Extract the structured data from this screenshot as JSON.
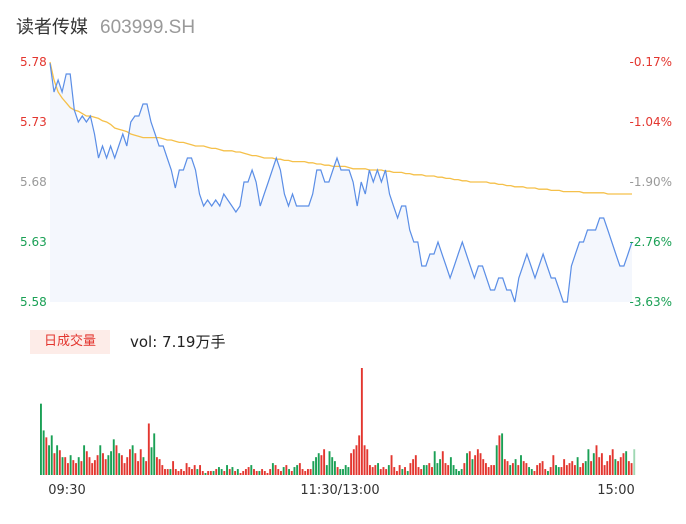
{
  "header": {
    "name": "读者传媒",
    "code": "603999.SH"
  },
  "volume_panel": {
    "tab_label": "日成交量",
    "vol_text": "vol: 7.19万手"
  },
  "colors": {
    "price_line": "#5b8ee6",
    "avg_line": "#f5c04a",
    "area_fill": "#f4f7fd",
    "up": "#e3362f",
    "down": "#1aa055",
    "neutral": "#9a9a9a",
    "badge_bg": "#fdece8"
  },
  "chart_data": [
    {
      "type": "line",
      "title": "",
      "y_ticks_left": [
        "5.78",
        "5.73",
        "5.68",
        "5.63",
        "5.58"
      ],
      "y_ticks_right": [
        "-0.17%",
        "-1.04%",
        "-1.90%",
        "-2.76%",
        "-3.63%"
      ],
      "ylim": [
        5.58,
        5.78
      ],
      "x_ticks": [
        "09:30",
        "11:30/13:00",
        "15:00"
      ],
      "series": [
        {
          "values": [
            5.779,
            5.755,
            5.765,
            5.755,
            5.77,
            5.77,
            5.74,
            5.73,
            5.735,
            5.73,
            5.735,
            5.72,
            5.7,
            5.71,
            5.7,
            5.71,
            5.7,
            5.71,
            5.72,
            5.71,
            5.73,
            5.735,
            5.735,
            5.745,
            5.745,
            5.73,
            5.72,
            5.71,
            5.71,
            5.7,
            5.69,
            5.675,
            5.69,
            5.69,
            5.7,
            5.7,
            5.69,
            5.67,
            5.66,
            5.665,
            5.66,
            5.665,
            5.66,
            5.67,
            5.665,
            5.66,
            5.655,
            5.66,
            5.68,
            5.68,
            5.69,
            5.68,
            5.66,
            5.67,
            5.68,
            5.69,
            5.7,
            5.69,
            5.67,
            5.66,
            5.67,
            5.66,
            5.66,
            5.66,
            5.66,
            5.67,
            5.69,
            5.69,
            5.68,
            5.68,
            5.69,
            5.7,
            5.69,
            5.69,
            5.69,
            5.68,
            5.66,
            5.68,
            5.67,
            5.69,
            5.68,
            5.69,
            5.68,
            5.69,
            5.67,
            5.66,
            5.65,
            5.66,
            5.66,
            5.64,
            5.63,
            5.63,
            5.61,
            5.61,
            5.62,
            5.62,
            5.63,
            5.62,
            5.61,
            5.6,
            5.61,
            5.62,
            5.63,
            5.62,
            5.61,
            5.6,
            5.61,
            5.61,
            5.6,
            5.59,
            5.59,
            5.6,
            5.6,
            5.59,
            5.59,
            5.58,
            5.6,
            5.61,
            5.62,
            5.61,
            5.6,
            5.61,
            5.62,
            5.61,
            5.6,
            5.6,
            5.59,
            5.58,
            5.58,
            5.61,
            5.62,
            5.63,
            5.63,
            5.64,
            5.64,
            5.64,
            5.65,
            5.65,
            5.64,
            5.63,
            5.62,
            5.61,
            5.61,
            5.62,
            5.63
          ]
        },
        {
          "values": [
            5.78,
            5.765,
            5.755,
            5.75,
            5.746,
            5.742,
            5.74,
            5.739,
            5.737,
            5.735,
            5.735,
            5.734,
            5.733,
            5.731,
            5.73,
            5.728,
            5.725,
            5.724,
            5.723,
            5.722,
            5.72,
            5.719,
            5.718,
            5.717,
            5.717,
            5.717,
            5.717,
            5.717,
            5.716,
            5.715,
            5.715,
            5.714,
            5.713,
            5.713,
            5.712,
            5.711,
            5.71,
            5.71,
            5.71,
            5.709,
            5.708,
            5.708,
            5.707,
            5.706,
            5.706,
            5.706,
            5.705,
            5.705,
            5.704,
            5.703,
            5.702,
            5.702,
            5.701,
            5.7,
            5.7,
            5.7,
            5.699,
            5.699,
            5.698,
            5.698,
            5.697,
            5.697,
            5.697,
            5.697,
            5.696,
            5.696,
            5.695,
            5.695,
            5.694,
            5.694,
            5.693,
            5.693,
            5.693,
            5.693,
            5.692,
            5.691,
            5.691,
            5.691,
            5.691,
            5.69,
            5.69,
            5.69,
            5.69,
            5.689,
            5.689,
            5.688,
            5.688,
            5.688,
            5.687,
            5.687,
            5.686,
            5.686,
            5.686,
            5.685,
            5.685,
            5.685,
            5.684,
            5.684,
            5.683,
            5.683,
            5.682,
            5.682,
            5.681,
            5.681,
            5.68,
            5.68,
            5.68,
            5.68,
            5.68,
            5.679,
            5.679,
            5.678,
            5.678,
            5.677,
            5.677,
            5.676,
            5.676,
            5.676,
            5.675,
            5.675,
            5.675,
            5.674,
            5.674,
            5.674,
            5.673,
            5.673,
            5.673,
            5.672,
            5.672,
            5.672,
            5.672,
            5.672,
            5.671,
            5.671,
            5.671,
            5.671,
            5.671,
            5.671,
            5.67,
            5.67,
            5.67,
            5.67,
            5.67,
            5.67,
            5.67
          ]
        }
      ]
    },
    {
      "type": "bar",
      "title": "",
      "values": [
        72,
        45,
        38,
        30,
        40,
        22,
        30,
        25,
        18,
        18,
        12,
        20,
        15,
        12,
        18,
        14,
        30,
        24,
        18,
        12,
        15,
        20,
        30,
        22,
        16,
        20,
        24,
        36,
        30,
        22,
        20,
        12,
        18,
        26,
        30,
        22,
        14,
        26,
        18,
        14,
        52,
        28,
        42,
        18,
        16,
        10,
        6,
        6,
        6,
        14,
        6,
        4,
        6,
        4,
        12,
        8,
        6,
        10,
        6,
        10,
        4,
        2,
        4,
        4,
        4,
        6,
        8,
        6,
        4,
        10,
        6,
        8,
        4,
        6,
        2,
        4,
        6,
        8,
        10,
        6,
        4,
        4,
        6,
        4,
        2,
        6,
        12,
        10,
        6,
        4,
        8,
        10,
        6,
        4,
        8,
        10,
        12,
        6,
        4,
        6,
        6,
        14,
        18,
        22,
        20,
        26,
        10,
        24,
        18,
        14,
        8,
        6,
        6,
        10,
        8,
        22,
        26,
        30,
        40,
        108,
        30,
        26,
        10,
        8,
        10,
        12,
        6,
        8,
        6,
        10,
        20,
        8,
        4,
        10,
        6,
        8,
        4,
        12,
        16,
        20,
        8,
        6,
        10,
        10,
        12,
        8,
        24,
        12,
        16,
        24,
        12,
        10,
        18,
        10,
        6,
        4,
        6,
        12,
        22,
        24,
        16,
        20,
        26,
        22,
        16,
        12,
        8,
        10,
        10,
        30,
        40,
        42,
        16,
        14,
        10,
        12,
        16,
        10,
        20,
        14,
        12,
        8,
        6,
        4,
        10,
        12,
        14,
        6,
        4,
        8,
        20,
        10,
        8,
        8,
        16,
        10,
        12,
        14,
        10,
        18,
        8,
        12,
        14,
        26,
        14,
        22,
        30,
        18,
        22,
        10,
        14,
        20,
        26,
        16,
        14,
        18,
        22,
        24,
        14,
        12,
        26
      ],
      "directions": [
        "d",
        "d",
        "u",
        "d",
        "d",
        "u",
        "d",
        "u",
        "d",
        "u",
        "u",
        "d",
        "u",
        "u",
        "d",
        "u",
        "d",
        "u",
        "u",
        "u",
        "u",
        "u",
        "d",
        "u",
        "u",
        "d",
        "d",
        "d",
        "u",
        "d",
        "u",
        "u",
        "u",
        "u",
        "d",
        "u",
        "u",
        "u",
        "d",
        "u",
        "u",
        "d",
        "d",
        "u",
        "u",
        "u",
        "u",
        "u",
        "d",
        "u",
        "u",
        "u",
        "u",
        "u",
        "u",
        "u",
        "u",
        "u",
        "d",
        "u",
        "u",
        "d",
        "u",
        "u",
        "d",
        "u",
        "d",
        "d",
        "u",
        "d",
        "u",
        "d",
        "u",
        "d",
        "u",
        "u",
        "u",
        "u",
        "d",
        "u",
        "u",
        "d",
        "u",
        "u",
        "u",
        "u",
        "d",
        "u",
        "u",
        "u",
        "d",
        "u",
        "d",
        "u",
        "d",
        "d",
        "u",
        "u",
        "u",
        "u",
        "u",
        "d",
        "d",
        "d",
        "u",
        "u",
        "d",
        "d",
        "d",
        "d",
        "u",
        "d",
        "d",
        "d",
        "d",
        "u",
        "u",
        "u",
        "u",
        "u",
        "u",
        "u",
        "u",
        "u",
        "u",
        "d",
        "u",
        "u",
        "u",
        "d",
        "u",
        "u",
        "u",
        "u",
        "d",
        "u",
        "d",
        "u",
        "u",
        "u",
        "u",
        "u",
        "d",
        "d",
        "u",
        "u",
        "d",
        "d",
        "d",
        "u",
        "u",
        "u",
        "d",
        "d",
        "d",
        "d",
        "d",
        "u",
        "d",
        "u",
        "d",
        "u",
        "u",
        "u",
        "u",
        "u",
        "u",
        "u",
        "u",
        "d",
        "u",
        "d",
        "u",
        "u",
        "d",
        "u",
        "d",
        "u",
        "d",
        "u",
        "u",
        "d",
        "d",
        "u",
        "u",
        "u",
        "u",
        "u",
        "d",
        "u",
        "u",
        "d",
        "d",
        "u",
        "u",
        "u",
        "u",
        "u",
        "u",
        "d",
        "u",
        "u",
        "d",
        "d",
        "u",
        "d",
        "u",
        "u",
        "u",
        "u",
        "u",
        "u",
        "u",
        "d",
        "u",
        "u",
        "u",
        "d",
        "u",
        "u",
        "d"
      ]
    }
  ]
}
